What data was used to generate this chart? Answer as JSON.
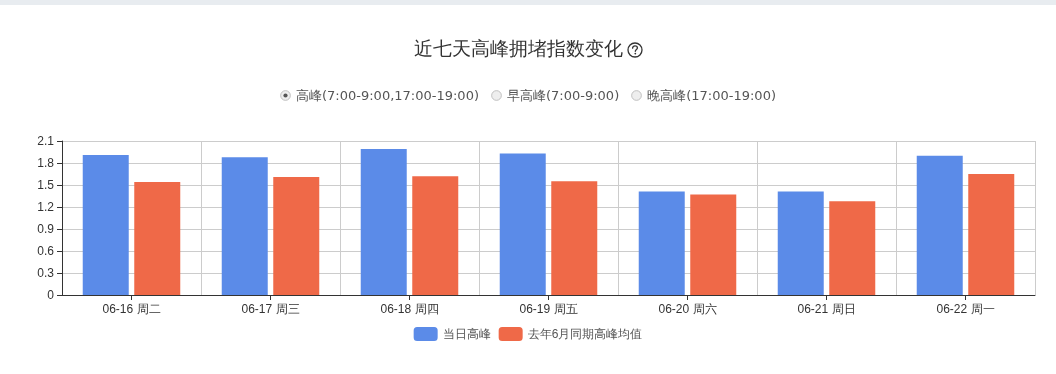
{
  "chart_data": {
    "type": "bar",
    "title": "近七天高峰拥堵指数变化",
    "annotations": [
      "高峰(7:00-9:00,17:00-19:00)",
      "早高峰(7:00-9:00)",
      "晚高峰(17:00-19:00)"
    ],
    "categories": [
      "06-16 周二",
      "06-17 周三",
      "06-18 周四",
      "06-19 周五",
      "06-20 周六",
      "06-21 周日",
      "06-22 周一"
    ],
    "series": [
      {
        "name": "当日高峰",
        "color": "#5b8be8",
        "values": [
          1.91,
          1.88,
          1.99,
          1.93,
          1.41,
          1.41,
          1.9
        ]
      },
      {
        "name": "去年6月同期高峰均值",
        "color": "#ef6948",
        "values": [
          1.54,
          1.61,
          1.62,
          1.55,
          1.37,
          1.28,
          1.65
        ]
      }
    ],
    "ylim": [
      0,
      2.1
    ],
    "yticks": [
      0,
      0.3,
      0.6,
      0.9,
      1.2,
      1.5,
      1.8,
      2.1
    ],
    "grid": true,
    "legend": "bottom"
  }
}
